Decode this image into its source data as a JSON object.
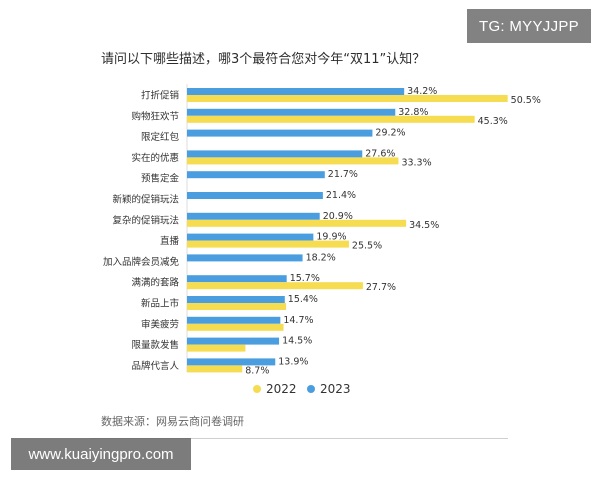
{
  "watermark_top": "TG: MYYJJPP",
  "watermark_bottom": "www.kuaiyingpro.com",
  "source": "数据来源：网易云商问卷调研",
  "colors": {
    "2022": "#f5dc50",
    "2023": "#4a9ee0"
  },
  "chart_data": {
    "type": "bar",
    "orientation": "horizontal",
    "title": "请问以下哪些描述，哪3个最符合您对今年“双11”认知？",
    "categories": [
      "打折促销",
      "购物狂欢节",
      "限定红包",
      "实在的优惠",
      "预售定金",
      "新颖的促销玩法",
      "复杂的促销玩法",
      "直播",
      "加入品牌会员减免",
      "满满的套路",
      "新品上市",
      "审美疲劳",
      "限量款发售",
      "品牌代言人"
    ],
    "series": [
      {
        "name": "2023",
        "values": [
          34.2,
          32.8,
          29.2,
          27.6,
          21.7,
          21.4,
          20.9,
          19.9,
          18.2,
          15.7,
          15.4,
          14.7,
          14.5,
          13.9
        ]
      },
      {
        "name": "2022",
        "values": [
          50.5,
          45.3,
          null,
          33.3,
          null,
          null,
          34.5,
          25.5,
          null,
          27.7,
          15.6,
          15.2,
          9.2,
          8.7
        ]
      }
    ],
    "value_labels": {
      "2023": [
        "34.2%",
        "32.8%",
        "29.2%",
        "27.6%",
        "21.7%",
        "21.4%",
        "20.9%",
        "19.9%",
        "18.2%",
        "15.7%",
        "15.4%",
        "14.7%",
        "14.5%",
        "13.9%"
      ],
      "2022": [
        "50.5%",
        "45.3%",
        "",
        "33.3%",
        "",
        "",
        "34.5%",
        "25.5%",
        "",
        "27.7%",
        "",
        "",
        "",
        "8.7%"
      ]
    },
    "legend": [
      "2022",
      "2023"
    ],
    "legend_position": "bottom",
    "xlim": [
      0,
      60
    ],
    "grid": false,
    "xlabel": "",
    "ylabel": ""
  }
}
